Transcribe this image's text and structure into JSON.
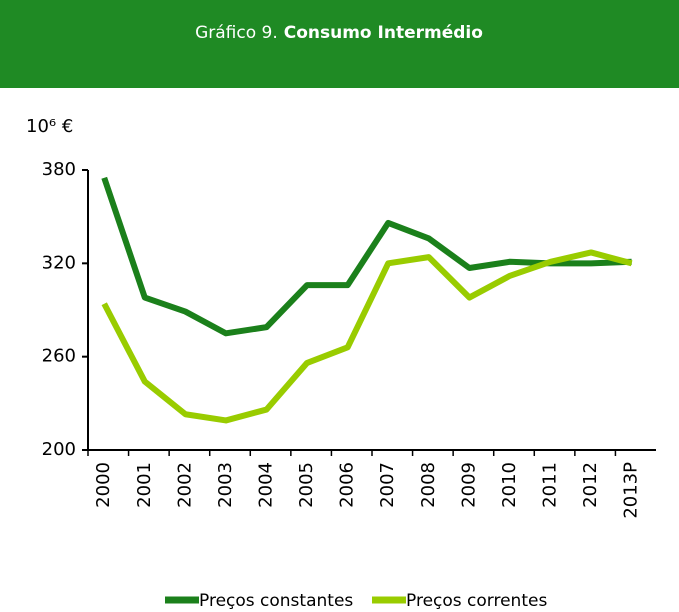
{
  "chart_data": {
    "type": "line",
    "title_prefix": "Gráfico 9.",
    "title": "Consumo Intermédio",
    "y_label": "10⁶ €",
    "categories": [
      "2000",
      "2001",
      "2002",
      "2003",
      "2004",
      "2005",
      "2006",
      "2007",
      "2008",
      "2009",
      "2010",
      "2011",
      "2012",
      "2013P"
    ],
    "series": [
      {
        "name": "Preços constantes",
        "color": "#1b801b",
        "values": [
          375,
          298,
          289,
          275,
          279,
          306,
          306,
          346,
          336,
          317,
          321,
          320,
          320,
          321
        ]
      },
      {
        "name": "Preços correntes",
        "color": "#99cc00",
        "values": [
          294,
          244,
          223,
          219,
          226,
          256,
          266,
          320,
          324,
          298,
          312,
          321,
          327,
          320
        ]
      }
    ],
    "ylim": [
      200,
      380
    ],
    "yticks": [
      200,
      260,
      320,
      380
    ],
    "grid": false,
    "legend": "bottom"
  }
}
